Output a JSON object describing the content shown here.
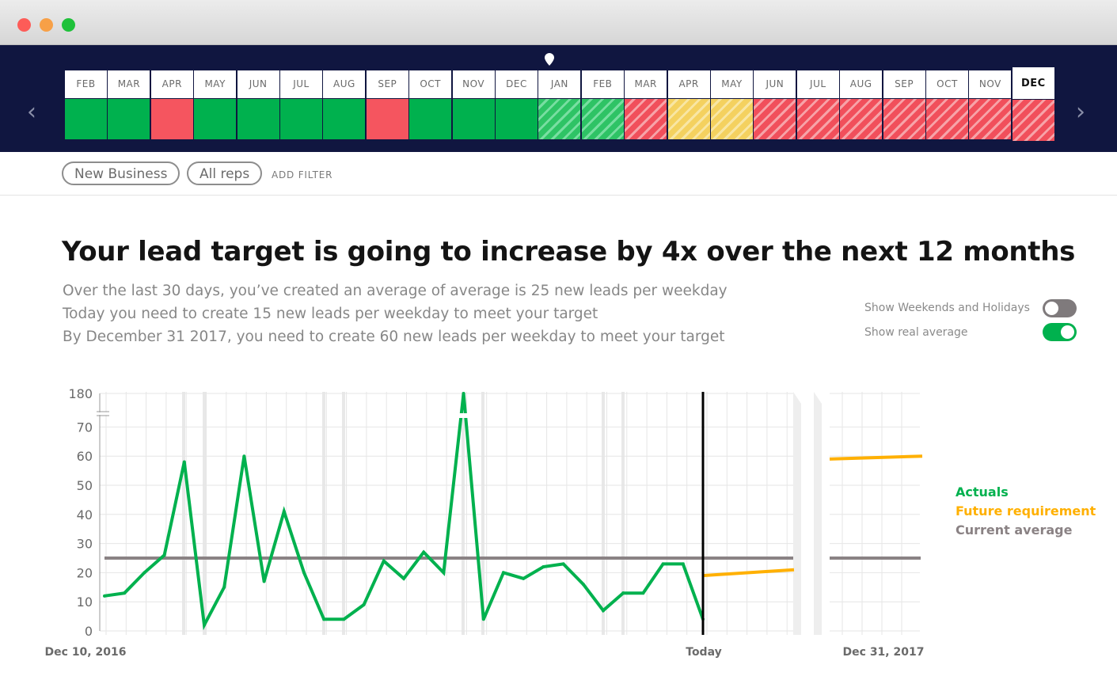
{
  "window": {
    "buttons": [
      "close",
      "minimize",
      "zoom"
    ]
  },
  "timeline": {
    "prev_icon": "chevron-left-icon",
    "next_icon": "chevron-right-icon",
    "marker_icon": "location-pin-icon",
    "months": [
      {
        "label": "FEB",
        "status": "solid-green"
      },
      {
        "label": "MAR",
        "status": "solid-green"
      },
      {
        "label": "APR",
        "status": "solid-red"
      },
      {
        "label": "MAY",
        "status": "solid-green"
      },
      {
        "label": "JUN",
        "status": "solid-green"
      },
      {
        "label": "JUL",
        "status": "solid-green"
      },
      {
        "label": "AUG",
        "status": "solid-green"
      },
      {
        "label": "SEP",
        "status": "solid-red"
      },
      {
        "label": "OCT",
        "status": "solid-green"
      },
      {
        "label": "NOV",
        "status": "solid-green"
      },
      {
        "label": "DEC",
        "status": "solid-green"
      },
      {
        "label": "JAN",
        "status": "hatched-green"
      },
      {
        "label": "FEB",
        "status": "hatched-green"
      },
      {
        "label": "MAR",
        "status": "hatched-red"
      },
      {
        "label": "APR",
        "status": "hatched-yellow"
      },
      {
        "label": "MAY",
        "status": "hatched-yellow"
      },
      {
        "label": "JUN",
        "status": "hatched-red"
      },
      {
        "label": "JUL",
        "status": "hatched-red"
      },
      {
        "label": "AUG",
        "status": "hatched-red"
      },
      {
        "label": "SEP",
        "status": "hatched-red"
      },
      {
        "label": "OCT",
        "status": "hatched-red"
      },
      {
        "label": "NOV",
        "status": "hatched-red"
      },
      {
        "label": "DEC",
        "status": "hatched-red",
        "selected": true
      }
    ]
  },
  "filters": {
    "chips": [
      "New Business",
      "All reps"
    ],
    "add_label": "ADD FILTER"
  },
  "headline": "Your lead target is going to increase by 4x over the next 12 months",
  "subtext": [
    "Over the last 30 days, you’ve created an average of average is 25 new leads per weekday",
    "Today you need to create 15 new leads per weekday to meet your target",
    "By December 31 2017, you need to create 60 new leads per weekday to meet your target"
  ],
  "toggles": [
    {
      "label": "Show Weekends and Holidays",
      "on": false
    },
    {
      "label": "Show real average",
      "on": true
    }
  ],
  "colors": {
    "actuals": "#00b14e",
    "future": "#ffb000",
    "average": "#8a8284",
    "today_line": "#000000"
  },
  "chart_data": {
    "type": "line",
    "y_ticks": [
      "0",
      "10",
      "20",
      "30",
      "40",
      "50",
      "60",
      "70",
      "180"
    ],
    "ylim": [
      0,
      70
    ],
    "axis_break": "between 70 and 180",
    "x_labels": {
      "start": "Dec 10, 2016",
      "today": "Today",
      "end": "Dec 31, 2017"
    },
    "series": [
      {
        "name": "Actuals",
        "values": [
          12,
          13,
          20,
          26,
          58,
          2,
          15,
          60,
          17,
          41,
          20,
          4,
          4,
          9,
          24,
          18,
          27,
          20,
          180,
          4,
          20,
          18,
          22,
          23,
          16,
          7,
          13,
          13,
          23,
          23,
          4
        ]
      },
      {
        "name": "Future requirement",
        "segments": [
          [
            19,
            21
          ],
          [
            59,
            60
          ]
        ]
      },
      {
        "name": "Current average",
        "value": 25
      }
    ],
    "legend_position": "right",
    "grid": true
  }
}
